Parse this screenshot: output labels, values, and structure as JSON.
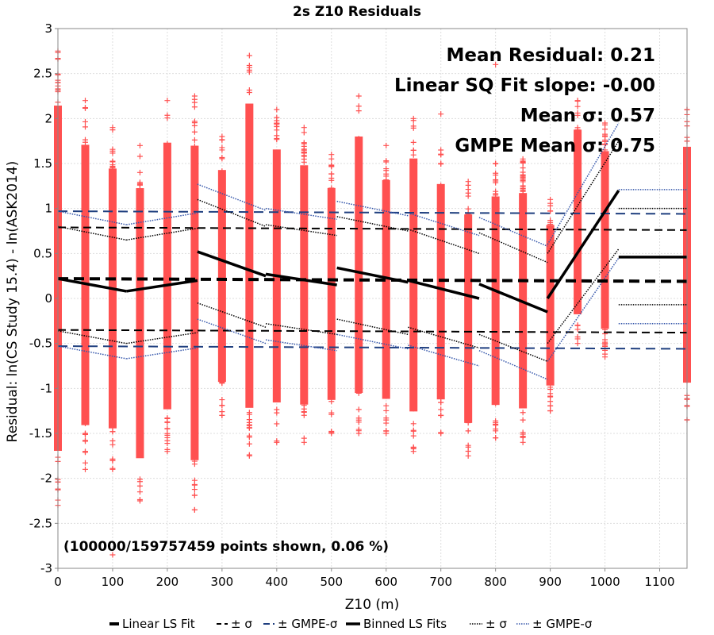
{
  "chart_data": {
    "type": "scatter",
    "title": "2s Z10 Residuals",
    "xlabel": "Z10 (m)",
    "ylabel": "Residual: ln(CS Study 15.4) - ln(ASK2014)",
    "xlim": [
      0,
      1150
    ],
    "ylim": [
      -3,
      3
    ],
    "x_ticks": [
      "0",
      "100",
      "200",
      "300",
      "400",
      "500",
      "600",
      "700",
      "800",
      "900",
      "1000",
      "1100"
    ],
    "y_ticks": [
      "-3",
      "-2.5",
      "-2",
      "-1.5",
      "-1",
      "-0.5",
      "0",
      "0.5",
      "1",
      "1.5",
      "2",
      "2.5",
      "3"
    ],
    "grid": true,
    "annotations": [
      "Mean Residual: 0.21",
      "Linear SQ Fit slope: -0.00",
      "Mean σ: 0.57",
      "GMPE Mean σ: 0.75"
    ],
    "footnote": "(100000/159757459 points shown, 0.06 %)",
    "scatter_color": "#ff5050",
    "scatter_columns": [
      {
        "x": 0,
        "ymin": -2.3,
        "ymax": 2.75
      },
      {
        "x": 50,
        "ymin": -1.9,
        "ymax": 2.2
      },
      {
        "x": 100,
        "ymin": -1.9,
        "ymax": 1.9
      },
      {
        "x": 150,
        "ymin": -2.25,
        "ymax": 1.7
      },
      {
        "x": 200,
        "ymin": -1.7,
        "ymax": 2.2
      },
      {
        "x": 250,
        "ymin": -2.35,
        "ymax": 2.25
      },
      {
        "x": 300,
        "ymin": -1.3,
        "ymax": 1.8
      },
      {
        "x": 350,
        "ymin": -1.75,
        "ymax": 2.7
      },
      {
        "x": 400,
        "ymin": -1.6,
        "ymax": 2.1
      },
      {
        "x": 450,
        "ymin": -1.6,
        "ymax": 1.9
      },
      {
        "x": 500,
        "ymin": -1.5,
        "ymax": 1.6
      },
      {
        "x": 550,
        "ymin": -1.5,
        "ymax": 2.25
      },
      {
        "x": 600,
        "ymin": -1.5,
        "ymax": 1.7
      },
      {
        "x": 650,
        "ymin": -1.7,
        "ymax": 2.0
      },
      {
        "x": 700,
        "ymin": -1.5,
        "ymax": 1.65
      },
      {
        "x": 750,
        "ymin": -1.75,
        "ymax": 1.3
      },
      {
        "x": 800,
        "ymin": -1.55,
        "ymax": 1.5
      },
      {
        "x": 850,
        "ymin": -1.6,
        "ymax": 1.55
      },
      {
        "x": 900,
        "ymin": -1.25,
        "ymax": 1.1
      },
      {
        "x": 950,
        "ymin": -0.5,
        "ymax": 2.2
      },
      {
        "x": 1000,
        "ymin": -0.65,
        "ymax": 1.95
      },
      {
        "x": 1150,
        "ymin": -1.35,
        "ymax": 2.1
      }
    ],
    "scatter_outliers": [
      {
        "x": 100,
        "y": -2.85
      },
      {
        "x": 250,
        "y": -2.35
      },
      {
        "x": 300,
        "y": -1.3
      },
      {
        "x": 800,
        "y": 2.6
      },
      {
        "x": 700,
        "y": 2.05
      },
      {
        "x": 1150,
        "y": -1.35
      }
    ],
    "linear_fit": {
      "name": "Linear LS Fit",
      "x": [
        0,
        1150
      ],
      "y": [
        0.22,
        0.19
      ]
    },
    "linear_sigma": {
      "name": "± σ",
      "upper": [
        0.79,
        0.76
      ],
      "lower": [
        -0.35,
        -0.38
      ]
    },
    "linear_gmpe_sigma": {
      "name": "± GMPE-σ",
      "upper": [
        0.97,
        0.94
      ],
      "lower": [
        -0.53,
        -0.56
      ]
    },
    "binned_fits": [
      {
        "x": [
          0,
          125
        ],
        "y": [
          0.22,
          0.08
        ],
        "sigma_upper": [
          0.8,
          0.65
        ],
        "sigma_lower": [
          -0.36,
          -0.5
        ],
        "gmpe_upper": [
          0.97,
          0.82
        ],
        "gmpe_lower": [
          -0.53,
          -0.67
        ]
      },
      {
        "x": [
          125,
          255
        ],
        "y": [
          0.08,
          0.2
        ],
        "sigma_upper": [
          0.65,
          0.78
        ],
        "sigma_lower": [
          -0.5,
          -0.38
        ],
        "gmpe_upper": [
          0.82,
          0.95
        ],
        "gmpe_lower": [
          -0.67,
          -0.55
        ]
      },
      {
        "x": [
          255,
          380
        ],
        "y": [
          0.52,
          0.25
        ],
        "sigma_upper": [
          1.1,
          0.8
        ],
        "sigma_lower": [
          -0.05,
          -0.32
        ],
        "gmpe_upper": [
          1.27,
          0.98
        ],
        "gmpe_lower": [
          -0.23,
          -0.5
        ]
      },
      {
        "x": [
          380,
          510
        ],
        "y": [
          0.27,
          0.15
        ],
        "sigma_upper": [
          0.82,
          0.7
        ],
        "sigma_lower": [
          -0.28,
          -0.4
        ],
        "gmpe_upper": [
          1.0,
          0.88
        ],
        "gmpe_lower": [
          -0.46,
          -0.58
        ]
      },
      {
        "x": [
          510,
          640
        ],
        "y": [
          0.34,
          0.18
        ],
        "sigma_upper": [
          0.91,
          0.75
        ],
        "sigma_lower": [
          -0.23,
          -0.4
        ],
        "gmpe_upper": [
          1.08,
          0.92
        ],
        "gmpe_lower": [
          -0.4,
          -0.56
        ]
      },
      {
        "x": [
          640,
          770
        ],
        "y": [
          0.2,
          0.0
        ],
        "sigma_upper": [
          0.77,
          0.5
        ],
        "sigma_lower": [
          -0.32,
          -0.55
        ],
        "gmpe_upper": [
          0.95,
          0.7
        ],
        "gmpe_lower": [
          -0.52,
          -0.75
        ]
      },
      {
        "x": [
          770,
          895
        ],
        "y": [
          0.16,
          -0.15
        ],
        "sigma_upper": [
          0.73,
          0.4
        ],
        "sigma_lower": [
          -0.4,
          -0.7
        ],
        "gmpe_upper": [
          0.9,
          0.58
        ],
        "gmpe_lower": [
          -0.58,
          -0.9
        ]
      },
      {
        "x": [
          895,
          1025
        ],
        "y": [
          0.0,
          1.2
        ],
        "sigma_upper": [
          0.5,
          1.75
        ],
        "sigma_lower": [
          -0.5,
          0.55
        ],
        "gmpe_upper": [
          0.6,
          1.95
        ],
        "gmpe_lower": [
          -0.7,
          0.45
        ]
      },
      {
        "x": [
          1025,
          1150
        ],
        "y": [
          0.46,
          0.46
        ],
        "sigma_upper": [
          1.0,
          1.0
        ],
        "sigma_lower": [
          -0.07,
          -0.07
        ],
        "gmpe_upper": [
          1.21,
          1.21
        ],
        "gmpe_lower": [
          -0.28,
          -0.28
        ]
      }
    ],
    "binned_sigma_name": "± σ",
    "binned_gmpe_name": "± GMPE-σ",
    "binned_name": "Binned LS Fits",
    "legend_position": "bottom",
    "colors": {
      "fit": "#000000",
      "gmpe_dash": "#1f3f7f",
      "gmpe_dot": "#3355aa",
      "grid": "#dddddd"
    }
  }
}
